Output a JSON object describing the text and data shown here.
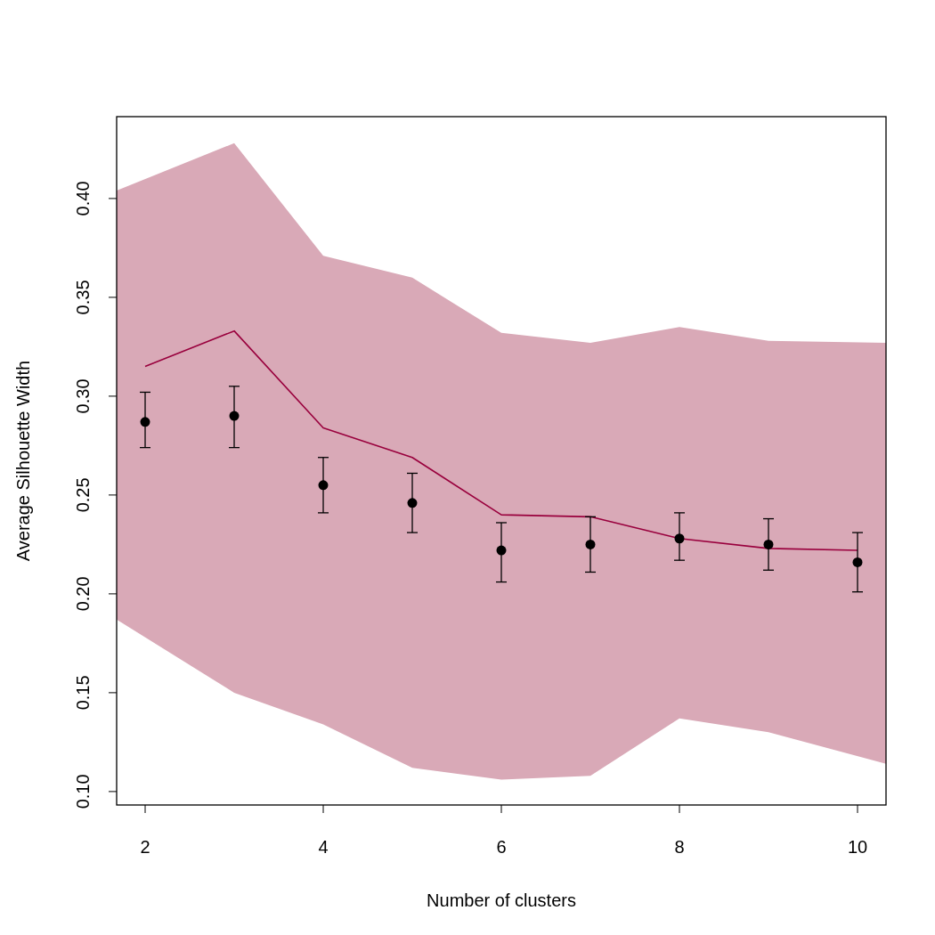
{
  "chart_data": {
    "type": "line",
    "xlabel": "Number of clusters",
    "ylabel": "Average Silhouette Width",
    "x": [
      2,
      3,
      4,
      5,
      6,
      7,
      8,
      9,
      10
    ],
    "xlim": [
      1.68,
      10.32
    ],
    "ylim": [
      0.0932,
      0.4414
    ],
    "xticks": [
      2,
      4,
      6,
      8,
      10
    ],
    "yticks": [
      {
        "value": 0.1,
        "label": "0.10"
      },
      {
        "value": 0.15,
        "label": "0.15"
      },
      {
        "value": 0.2,
        "label": "0.20"
      },
      {
        "value": 0.25,
        "label": "0.25"
      },
      {
        "value": 0.3,
        "label": "0.30"
      },
      {
        "value": 0.35,
        "label": "0.35"
      },
      {
        "value": 0.4,
        "label": "0.40"
      }
    ],
    "grid": false,
    "legend": false,
    "series": [
      {
        "type": "area",
        "color": "#d9a9b7",
        "x": [
          1.68,
          3,
          4,
          5,
          6,
          7,
          8,
          9,
          10.32
        ],
        "values": [
          null,
          null,
          null,
          null,
          null,
          null,
          null,
          null,
          null
        ],
        "lower": [
          0.187,
          0.15,
          0.134,
          0.112,
          0.106,
          0.108,
          0.137,
          0.13,
          0.114
        ],
        "upper": [
          0.404,
          0.428,
          0.371,
          0.36,
          0.332,
          0.327,
          0.335,
          0.328,
          0.327
        ]
      },
      {
        "color": "#99003d",
        "marker": "none",
        "values": [
          0.315,
          0.333,
          0.284,
          0.269,
          0.24,
          0.239,
          0.228,
          0.223,
          0.222
        ]
      },
      {
        "type": "scatter",
        "color": "#000000",
        "marker": "circle",
        "values": [
          0.287,
          0.29,
          0.255,
          0.246,
          0.222,
          0.225,
          0.228,
          0.225,
          0.216
        ],
        "errors": [
          [
            0.274,
            0.302
          ],
          [
            0.274,
            0.305
          ],
          [
            0.241,
            0.269
          ],
          [
            0.231,
            0.261
          ],
          [
            0.206,
            0.236
          ],
          [
            0.211,
            0.239
          ],
          [
            0.217,
            0.241
          ],
          [
            0.212,
            0.238
          ],
          [
            0.201,
            0.231
          ]
        ]
      }
    ]
  }
}
